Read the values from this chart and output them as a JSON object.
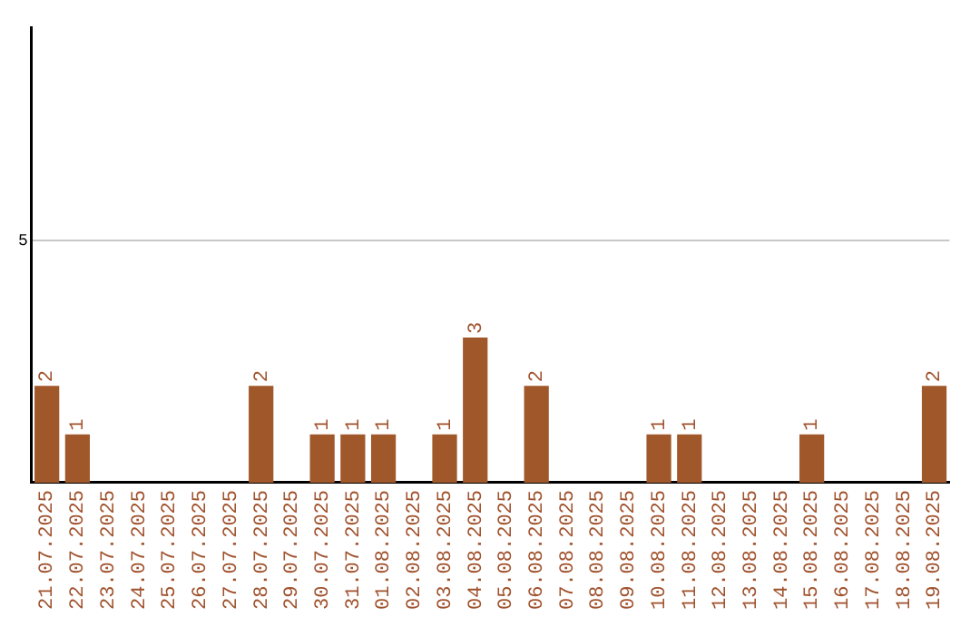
{
  "chart_data": {
    "type": "bar",
    "categories": [
      "21.07.2025",
      "22.07.2025",
      "23.07.2025",
      "24.07.2025",
      "25.07.2025",
      "26.07.2025",
      "27.07.2025",
      "28.07.2025",
      "29.07.2025",
      "30.07.2025",
      "31.07.2025",
      "01.08.2025",
      "02.08.2025",
      "03.08.2025",
      "04.08.2025",
      "05.08.2025",
      "06.08.2025",
      "07.08.2025",
      "08.08.2025",
      "09.08.2025",
      "10.08.2025",
      "11.08.2025",
      "12.08.2025",
      "13.08.2025",
      "14.08.2025",
      "15.08.2025",
      "16.08.2025",
      "17.08.2025",
      "18.08.2025",
      "19.08.2025"
    ],
    "values": [
      2,
      1,
      0,
      0,
      0,
      0,
      0,
      2,
      0,
      1,
      1,
      1,
      0,
      1,
      3,
      0,
      2,
      0,
      0,
      0,
      1,
      1,
      0,
      0,
      0,
      1,
      0,
      0,
      0,
      2
    ],
    "value_labels": [
      "2",
      "1",
      null,
      null,
      null,
      null,
      null,
      "2",
      null,
      "1",
      "1",
      "1",
      null,
      "1",
      "3",
      null,
      "2",
      null,
      null,
      null,
      "1",
      "1",
      null,
      null,
      null,
      "1",
      null,
      null,
      null,
      "2"
    ],
    "color": "#a0572a",
    "ylim": [
      0,
      9.4
    ],
    "yticks": [
      5
    ],
    "grid": "y",
    "legend": false
  }
}
